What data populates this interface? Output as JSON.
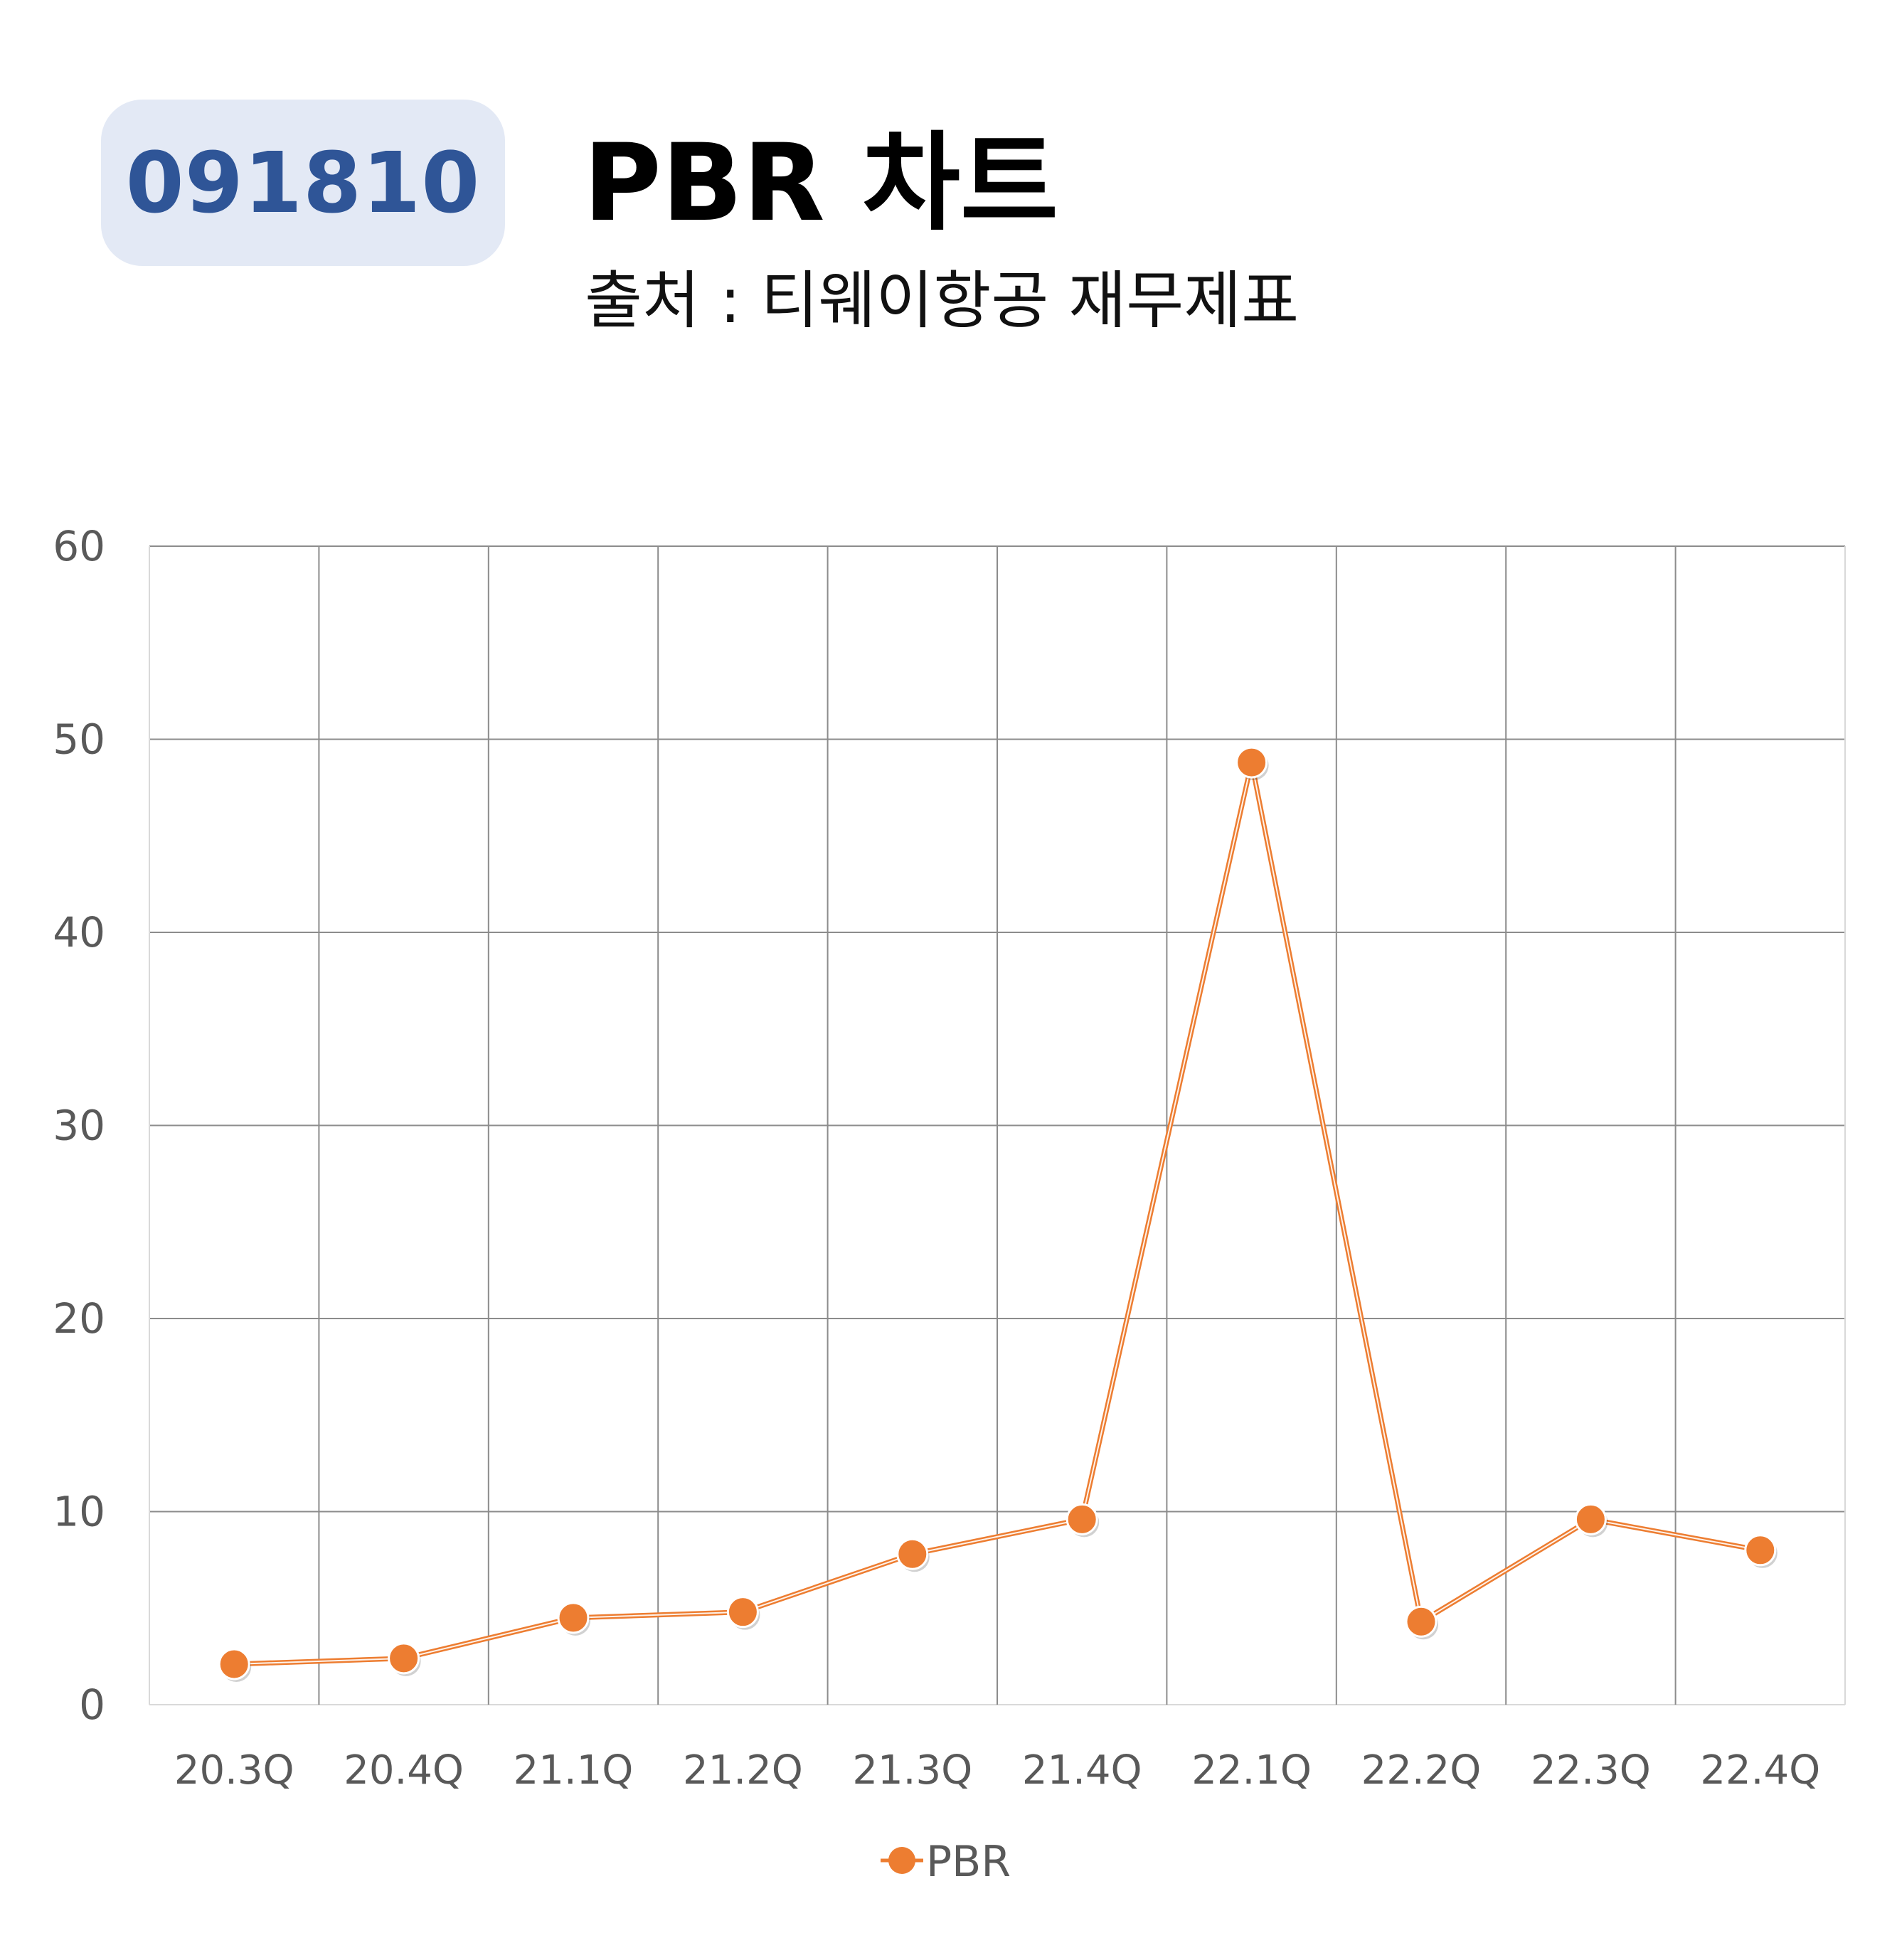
{
  "header": {
    "code": "091810",
    "title": "PBR 차트",
    "subtitle": "출처 : 티웨이항공 재무제표"
  },
  "colors": {
    "badge_background": "#e3e9f5",
    "badge_text": "#2f5597",
    "series_line": "#ed7d31",
    "grid": "#8c8c8c",
    "tick_text": "#595959"
  },
  "chart_data": {
    "type": "line",
    "categories": [
      "20.3Q",
      "20.4Q",
      "21.1Q",
      "21.2Q",
      "21.3Q",
      "21.4Q",
      "22.1Q",
      "22.2Q",
      "22.3Q",
      "22.4Q"
    ],
    "series": [
      {
        "name": "PBR",
        "values": [
          2.1,
          2.4,
          4.5,
          4.8,
          7.8,
          9.6,
          48.8,
          4.3,
          9.6,
          8.0
        ]
      }
    ],
    "ylim": [
      0,
      60
    ],
    "yticks": [
      0,
      10,
      20,
      30,
      40,
      50,
      60
    ],
    "grid": true,
    "legend_position": "bottom",
    "xlabel": "",
    "ylabel": ""
  }
}
